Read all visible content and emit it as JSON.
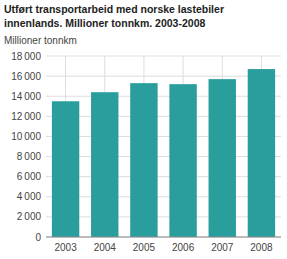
{
  "chart_data": {
    "type": "bar",
    "title": "Utført transportarbeid med norske lastebiler",
    "subtitle": "innenlands. Millioner tonnkm. 2003-2008",
    "ylabel": "Millioner tonnkm",
    "categories": [
      "2003",
      "2004",
      "2005",
      "2006",
      "2007",
      "2008"
    ],
    "values": [
      13500,
      14400,
      15300,
      15200,
      15700,
      16700
    ],
    "color": "#2a9d9d",
    "ylim": [
      0,
      18000
    ],
    "yticks": [
      0,
      {
        "value": 2000,
        "label": "2 000"
      },
      {
        "value": 4000,
        "label": "4 000"
      },
      {
        "value": 6000,
        "label": "6 000"
      },
      {
        "value": 8000,
        "label": "8 000"
      },
      {
        "value": 10000,
        "label": "10 000"
      },
      {
        "value": 12000,
        "label": "12 000"
      },
      {
        "value": 14000,
        "label": "14 000"
      },
      {
        "value": 16000,
        "label": "16 000"
      },
      {
        "value": 18000,
        "label": "18 000"
      }
    ],
    "grid": true
  }
}
